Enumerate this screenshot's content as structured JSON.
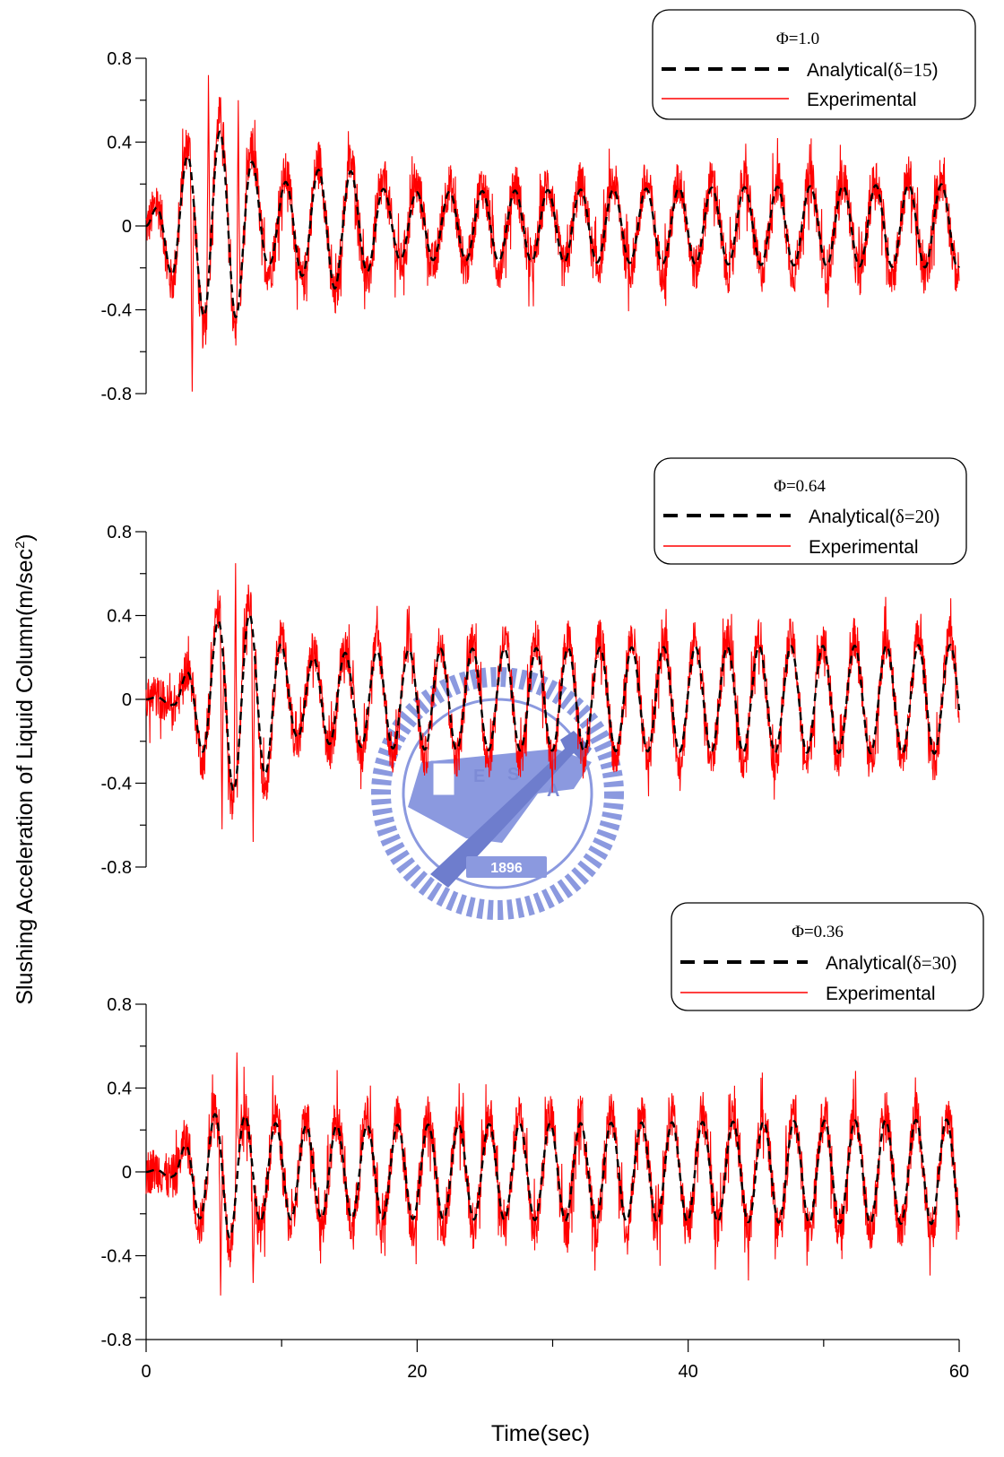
{
  "colors": {
    "analytical": "#000000",
    "experimental": "#ff0000",
    "watermark": "#7f8fdc"
  },
  "watermark": {
    "year": "1896",
    "letters": [
      "E",
      "S",
      "A"
    ]
  },
  "chart_data": {
    "type": "line",
    "x_axis": {
      "label": "Time(sec)",
      "range": [
        0,
        60
      ],
      "ticks": [
        "0",
        "20",
        "40",
        "60"
      ]
    },
    "y_axis": {
      "label": "Slushing Acceleration of Liquid Column(m/sec",
      "label_sup": "2",
      "label_close": ")"
    },
    "panels": [
      {
        "legend": {
          "title": "Φ=1.0",
          "analytical": "Analytical(",
          "delta": "δ=15",
          "close": ")",
          "experimental": "Experimental"
        },
        "ylim": [
          -0.8,
          0.8
        ],
        "y_ticks": [
          "0.8",
          "0.4",
          "0",
          "-0.4",
          "-0.8"
        ],
        "series": [
          {
            "name": "Analytical(δ=15)",
            "style": "dashed",
            "period": 2.42,
            "phase": 0.0,
            "envelope": [
              [
                0,
                0
              ],
              [
                2,
                0.25
              ],
              [
                4.5,
                0.45
              ],
              [
                6.5,
                0.45
              ],
              [
                9,
                0.18
              ],
              [
                12,
                0.25
              ],
              [
                14,
                0.3
              ],
              [
                18,
                0.16
              ],
              [
                60,
                0.2
              ]
            ]
          },
          {
            "name": "Experimental",
            "style": "solid",
            "noise": 0.11,
            "extreme": [
              [
                3.4,
                -0.79
              ],
              [
                4.6,
                0.72
              ],
              [
                6.8,
                0.6
              ]
            ]
          }
        ]
      },
      {
        "legend": {
          "title": "Φ=0.64",
          "analytical": "Analytical(",
          "delta": "δ=20",
          "close": ")",
          "experimental": "Experimental"
        },
        "ylim": [
          -0.8,
          0.8
        ],
        "y_ticks": [
          "0.8",
          "0.4",
          "0",
          "-0.4",
          "-0.8"
        ],
        "series": [
          {
            "name": "Analytical(δ=20)",
            "style": "dashed",
            "period": 2.35,
            "phase": 0.0,
            "envelope": [
              [
                0,
                0
              ],
              [
                2,
                0.03
              ],
              [
                3.5,
                0.18
              ],
              [
                6,
                0.45
              ],
              [
                8.5,
                0.38
              ],
              [
                11,
                0.18
              ],
              [
                14,
                0.22
              ],
              [
                20,
                0.24
              ],
              [
                60,
                0.26
              ]
            ]
          },
          {
            "name": "Experimental",
            "style": "solid",
            "noise": 0.1,
            "extreme": [
              [
                5.6,
                -0.62
              ],
              [
                6.6,
                0.65
              ],
              [
                7.9,
                -0.68
              ]
            ]
          }
        ]
      },
      {
        "legend": {
          "title": "Φ=0.36",
          "analytical": "Analytical(",
          "delta": "δ=30",
          "close": ")",
          "experimental": "Experimental"
        },
        "ylim": [
          -0.8,
          0.8
        ],
        "y_ticks": [
          "0.8",
          "0.4",
          "0",
          "-0.4",
          "-0.8"
        ],
        "series": [
          {
            "name": "Analytical(δ=30)",
            "style": "dashed",
            "period": 2.25,
            "phase": 0.0,
            "envelope": [
              [
                0,
                0
              ],
              [
                2,
                0.03
              ],
              [
                3.5,
                0.2
              ],
              [
                6,
                0.32
              ],
              [
                8,
                0.24
              ],
              [
                12,
                0.22
              ],
              [
                60,
                0.25
              ]
            ]
          },
          {
            "name": "Experimental",
            "style": "solid",
            "noise": 0.11,
            "extreme": [
              [
                5.5,
                -0.59
              ],
              [
                6.7,
                0.57
              ],
              [
                7.9,
                -0.53
              ]
            ]
          }
        ]
      }
    ]
  }
}
